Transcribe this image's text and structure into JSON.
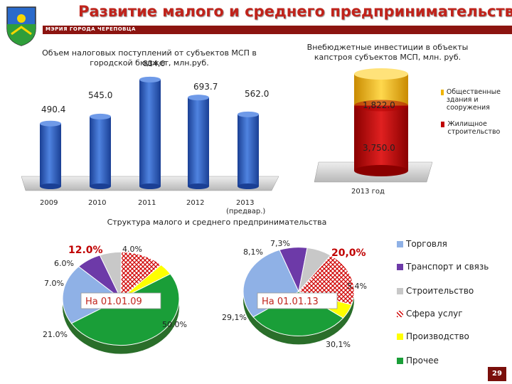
{
  "header": {
    "title": "Развитие малого и среднего предпринимательства",
    "org": "МЭРИЯ ГОРОДА ЧЕРЕПОВЦА"
  },
  "page_number": "29",
  "colors": {
    "accent": "#c0231b",
    "bar_blue": "#2e5fc2",
    "gold": "#f0b400",
    "red": "#c00000",
    "green": "#1a9e38",
    "light_blue": "#8fb1e6",
    "purple": "#6d3aa8",
    "gray": "#c8c8c8",
    "yellow": "#ffff00"
  },
  "chart_data": [
    {
      "type": "bar",
      "title": "Объем налоговых поступлений от субъектов МСП в городской бюджет, млн.руб.",
      "overlapping_text": "834,0",
      "categories": [
        "2009",
        "2010",
        "2011",
        "2012",
        "2013 (предвар.)"
      ],
      "values": [
        490.4,
        545.0,
        834.0,
        693.7,
        562.0
      ],
      "value_labels": [
        "490.4",
        "545.0",
        "",
        "693.7",
        "562.0"
      ],
      "ylim": [
        0,
        900
      ]
    },
    {
      "type": "bar",
      "title": "Внебюджетные инвестиции в объекты капстроя субъектов МСП, млн. руб.",
      "categories": [
        "2013 год"
      ],
      "series": [
        {
          "name": "Жилищное строительство",
          "values": [
            3750.0
          ],
          "label": "3,750.0"
        },
        {
          "name": "Общественные здания и сооружения",
          "values": [
            1822.0
          ],
          "label": "1,822.0"
        }
      ],
      "stacked": true,
      "legend_position": "right"
    },
    {
      "type": "pie",
      "title": "Структура малого и среднего предпринимательства",
      "legend": [
        "Торговля",
        "Транспорт и связь",
        "Строительство",
        "Сфера услуг",
        "Производство",
        "Прочее"
      ],
      "pies": [
        {
          "label": "На 01.01.09",
          "values": [
            21.0,
            7.0,
            6.0,
            12.0,
            4.0,
            50.0
          ],
          "value_labels": [
            "21.0%",
            "7.0%",
            "6.0%",
            "12.0%",
            "4.0%",
            "50.0%"
          ]
        },
        {
          "label": "На 01.01.13",
          "values": [
            29.1,
            8.1,
            7.3,
            20.0,
            5.4,
            30.1
          ],
          "value_labels": [
            "29,1%",
            "8,1%",
            "7,3%",
            "20,0%",
            "5.4%",
            "30,1%"
          ]
        }
      ]
    }
  ]
}
